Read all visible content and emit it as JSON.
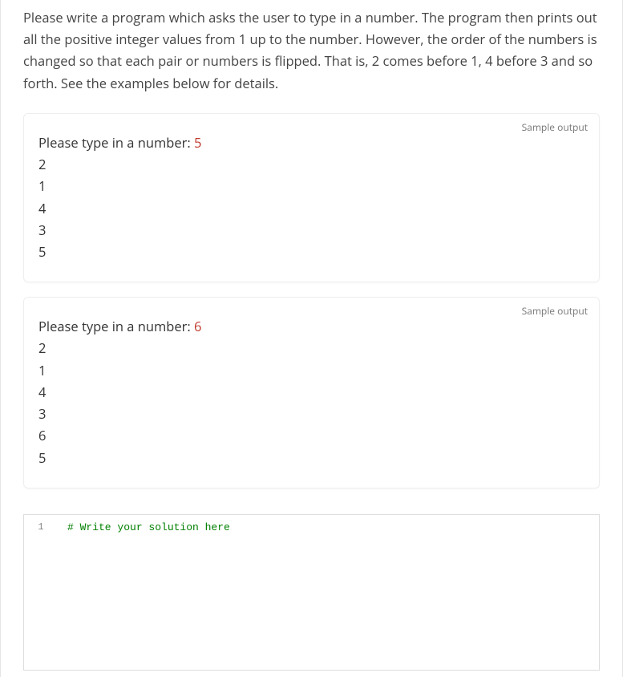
{
  "text_color": "#444444",
  "accent_input_color": "#c0392b",
  "comment_color": "#008000",
  "background_color": "#ffffff",
  "problem": "Please write a program which asks the user to type in a number. The program then prints out all the positive integer values from 1 up to the number. However, the order of the numbers is changed so that each pair or numbers is flipped. That is, 2 comes before 1, 4 before 3 and so forth. See the examples below for details.",
  "sample_label": "Sample output",
  "samples": [
    {
      "prompt": "Please type in a number: ",
      "input": "5",
      "output": [
        "2",
        "1",
        "4",
        "3",
        "5"
      ]
    },
    {
      "prompt": "Please type in a number: ",
      "input": "6",
      "output": [
        "2",
        "1",
        "4",
        "3",
        "6",
        "5"
      ]
    }
  ],
  "editor": {
    "line_numbers": [
      "1"
    ],
    "code": "# Write your solution here"
  }
}
